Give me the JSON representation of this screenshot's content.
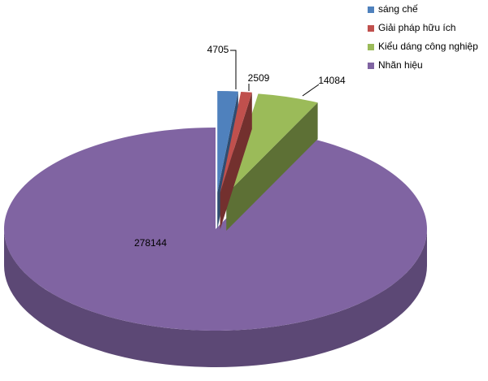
{
  "chart_data": {
    "type": "pie",
    "categories": [
      "sáng chế",
      "Giải pháp hữu ích",
      "Kiểu dáng công nghiệp",
      "Nhãn hiệu"
    ],
    "values": [
      4705,
      2509,
      14084,
      278144
    ],
    "colors": [
      "#4f81bd",
      "#c0504d",
      "#9bbb59",
      "#8064a2"
    ],
    "legend": "top-right"
  }
}
